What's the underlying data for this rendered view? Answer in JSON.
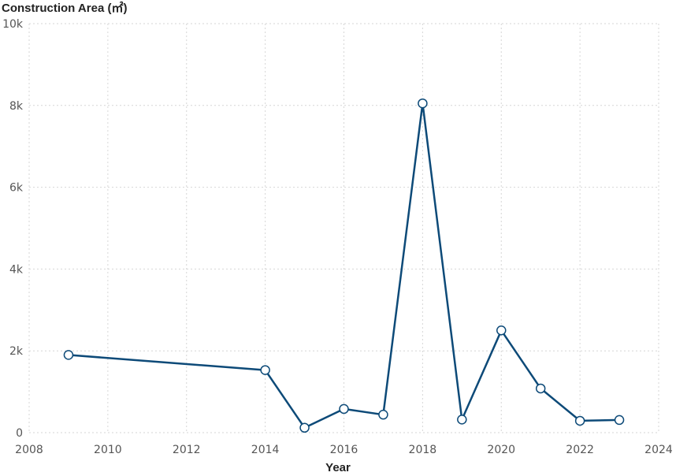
{
  "chart_data": {
    "type": "line",
    "title": "Construction Area (㎡)",
    "xlabel": "Year",
    "ylabel": "",
    "xlim": [
      2008,
      2024
    ],
    "ylim": [
      0,
      10000
    ],
    "x_ticks": [
      2008,
      2010,
      2012,
      2014,
      2016,
      2018,
      2020,
      2022,
      2024
    ],
    "x_tick_labels": [
      "2008",
      "2010",
      "2012",
      "2014",
      "2016",
      "2018",
      "2020",
      "2022",
      "2024"
    ],
    "y_ticks": [
      0,
      2000,
      4000,
      6000,
      8000,
      10000
    ],
    "y_tick_labels": [
      "0",
      "2k",
      "4k",
      "6k",
      "8k",
      "10k"
    ],
    "grid": true,
    "legend": false,
    "colors": {
      "line": "#0d4a78",
      "marker_fill": "#ffffff",
      "grid": "#d6d6d6"
    },
    "series": [
      {
        "x": [
          2009,
          2014,
          2015,
          2016,
          2017,
          2018,
          2019,
          2020,
          2021,
          2022,
          2023
        ],
        "y": [
          1900,
          1530,
          120,
          580,
          440,
          8050,
          320,
          2500,
          1080,
          290,
          310
        ]
      }
    ]
  }
}
